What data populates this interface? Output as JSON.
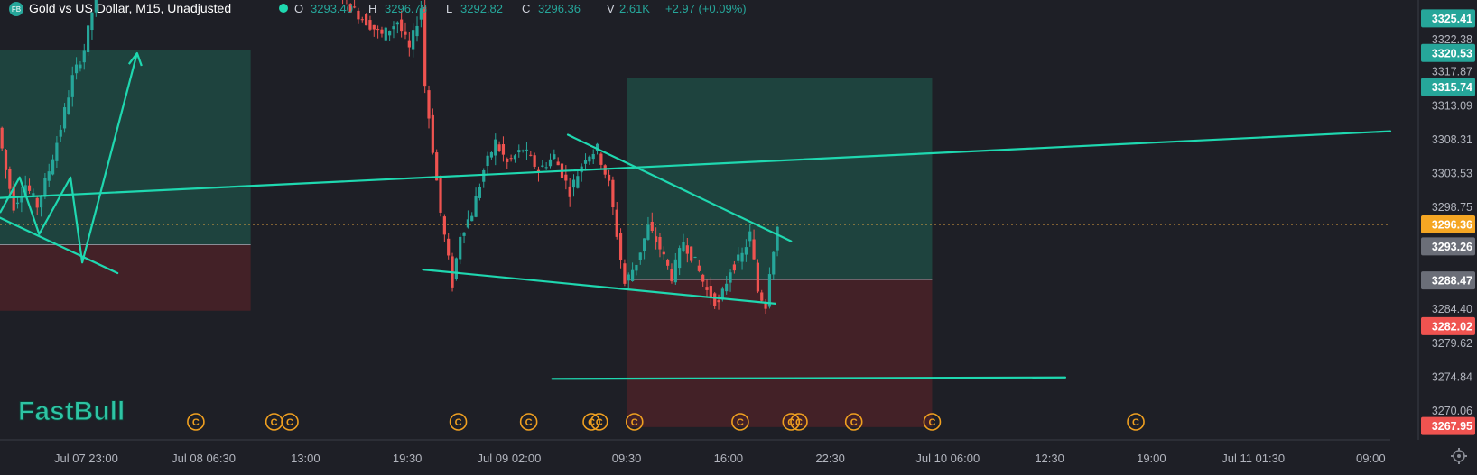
{
  "header": {
    "symbol_badge": "FB",
    "title": "Gold vs US Dollar, M15, Unadjusted",
    "open_label": "O",
    "open": "3293.40",
    "high_label": "H",
    "high": "3296.78",
    "low_label": "L",
    "low": "3292.82",
    "close_label": "C",
    "close": "3296.36",
    "volume_label": "V",
    "volume": "2.61K",
    "change": "+2.97 (+0.09%)"
  },
  "watermark": "FastBull",
  "event_marker_glyph": "C",
  "colors": {
    "background": "#1e1f26",
    "up_candle": "#26a69a",
    "down_candle": "#ef5350",
    "drawing": "#1fd8b0",
    "profit_zone": "#1f4a43",
    "loss_zone": "#4a2228",
    "event_marker": "#f0a020",
    "price_line": "#e0a040"
  },
  "chart_data": {
    "type": "candlestick",
    "symbol": "Gold vs US Dollar",
    "timeframe": "M15",
    "y_axis": {
      "range": [
        3266,
        3328
      ],
      "ticks": [
        3270.06,
        3274.84,
        3279.62,
        3284.4,
        3298.75,
        3303.53,
        3308.31,
        3313.09,
        3317.87,
        3322.38
      ]
    },
    "x_axis": {
      "range_bars": [
        0,
        355
      ],
      "ticks": [
        {
          "label": "Jul 07 23:00",
          "bar": 22
        },
        {
          "label": "Jul 08 06:30",
          "bar": 52
        },
        {
          "label": "13:00",
          "bar": 78
        },
        {
          "label": "19:30",
          "bar": 104
        },
        {
          "label": "Jul 09 02:00",
          "bar": 130
        },
        {
          "label": "09:30",
          "bar": 160
        },
        {
          "label": "16:00",
          "bar": 186
        },
        {
          "label": "22:30",
          "bar": 212
        },
        {
          "label": "Jul 10 06:00",
          "bar": 242
        },
        {
          "label": "12:30",
          "bar": 268
        },
        {
          "label": "19:00",
          "bar": 294
        },
        {
          "label": "Jul 11 01:30",
          "bar": 320
        },
        {
          "label": "09:00",
          "bar": 350
        }
      ]
    },
    "price_labels": [
      {
        "value": 3325.41,
        "text": "3325.41",
        "bg": "#26a69a"
      },
      {
        "value": 3320.53,
        "text": "3320.53",
        "bg": "#26a69a"
      },
      {
        "value": 3315.74,
        "text": "3315.74",
        "bg": "#26a69a"
      },
      {
        "value": 3296.36,
        "text": "3296.36",
        "bg": "#f5a623"
      },
      {
        "value": 3293.26,
        "text": "3293.26",
        "bg": "#6b6e78"
      },
      {
        "value": 3288.47,
        "text": "3288.47",
        "bg": "#6b6e78"
      },
      {
        "value": 3282.02,
        "text": "3282.02",
        "bg": "#ef5350"
      },
      {
        "value": 3267.95,
        "text": "3267.95",
        "bg": "#ef5350"
      }
    ],
    "current_price": 3296.36,
    "key_points": [
      {
        "bar": 0,
        "price": 3310
      },
      {
        "bar": 2,
        "price": 3304
      },
      {
        "bar": 4,
        "price": 3299
      },
      {
        "bar": 7,
        "price": 3302
      },
      {
        "bar": 10,
        "price": 3299
      },
      {
        "bar": 13,
        "price": 3304
      },
      {
        "bar": 16,
        "price": 3310
      },
      {
        "bar": 19,
        "price": 3317
      },
      {
        "bar": 22,
        "price": 3321
      },
      {
        "bar": 25,
        "price": 3329
      },
      {
        "bar": 86,
        "price": 3331
      },
      {
        "bar": 90,
        "price": 3327
      },
      {
        "bar": 94,
        "price": 3325
      },
      {
        "bar": 98,
        "price": 3323
      },
      {
        "bar": 102,
        "price": 3325
      },
      {
        "bar": 105,
        "price": 3321
      },
      {
        "bar": 108,
        "price": 3327
      },
      {
        "bar": 109,
        "price": 3316
      },
      {
        "bar": 111,
        "price": 3307
      },
      {
        "bar": 113,
        "price": 3298
      },
      {
        "bar": 116,
        "price": 3288
      },
      {
        "bar": 118,
        "price": 3295
      },
      {
        "bar": 121,
        "price": 3298
      },
      {
        "bar": 124,
        "price": 3304
      },
      {
        "bar": 127,
        "price": 3308
      },
      {
        "bar": 130,
        "price": 3305
      },
      {
        "bar": 134,
        "price": 3307
      },
      {
        "bar": 138,
        "price": 3304
      },
      {
        "bar": 142,
        "price": 3306
      },
      {
        "bar": 146,
        "price": 3301
      },
      {
        "bar": 150,
        "price": 3306
      },
      {
        "bar": 153,
        "price": 3307
      },
      {
        "bar": 156,
        "price": 3302
      },
      {
        "bar": 158,
        "price": 3295
      },
      {
        "bar": 160,
        "price": 3288
      },
      {
        "bar": 163,
        "price": 3291
      },
      {
        "bar": 166,
        "price": 3296
      },
      {
        "bar": 169,
        "price": 3293
      },
      {
        "bar": 172,
        "price": 3289
      },
      {
        "bar": 175,
        "price": 3294
      },
      {
        "bar": 178,
        "price": 3291
      },
      {
        "bar": 181,
        "price": 3287
      },
      {
        "bar": 184,
        "price": 3285
      },
      {
        "bar": 187,
        "price": 3290
      },
      {
        "bar": 190,
        "price": 3292
      },
      {
        "bar": 192,
        "price": 3295
      },
      {
        "bar": 194,
        "price": 3287
      },
      {
        "bar": 196,
        "price": 3285
      },
      {
        "bar": 197,
        "price": 3290
      },
      {
        "bar": 199,
        "price": 3296
      }
    ],
    "drawings": {
      "zones": [
        {
          "bar_start": 0,
          "bar_end": 64,
          "price_top": 3321,
          "price_bottom": 3293.5,
          "kind": "profit"
        },
        {
          "bar_start": 0,
          "bar_end": 64,
          "price_top": 3293.5,
          "price_bottom": 3284.2,
          "kind": "loss"
        },
        {
          "bar_start": 160,
          "bar_end": 238,
          "price_top": 3317,
          "price_bottom": 3288.6,
          "kind": "profit"
        },
        {
          "bar_start": 160,
          "bar_end": 238,
          "price_top": 3288.6,
          "price_bottom": 3267.8,
          "kind": "loss"
        }
      ],
      "trendlines": [
        {
          "from": {
            "bar": 0,
            "price": 3300.1
          },
          "to": {
            "bar": 355,
            "price": 3309.5
          }
        },
        {
          "from": {
            "bar": 145,
            "price": 3309
          },
          "to": {
            "bar": 202,
            "price": 3294
          }
        },
        {
          "from": {
            "bar": 108,
            "price": 3290
          },
          "to": {
            "bar": 198,
            "price": 3285.2
          }
        },
        {
          "from": {
            "bar": 141,
            "price": 3274.6
          },
          "to": {
            "bar": 272,
            "price": 3274.8
          }
        },
        {
          "from": {
            "bar": 0,
            "price": 3297.3
          },
          "to": {
            "bar": 30,
            "price": 3289.5
          }
        }
      ],
      "polyline": [
        {
          "bar": 0,
          "price": 3298
        },
        {
          "bar": 5,
          "price": 3303
        },
        {
          "bar": 10,
          "price": 3295
        },
        {
          "bar": 18,
          "price": 3303
        },
        {
          "bar": 21,
          "price": 3291
        },
        {
          "bar": 35,
          "price": 3320.5
        }
      ],
      "arrowhead": {
        "bar": 35,
        "price": 3320.5
      }
    },
    "event_marker_bars": [
      50,
      70,
      74,
      117,
      135,
      151,
      153,
      162,
      189,
      202,
      204,
      218,
      238,
      290
    ]
  }
}
